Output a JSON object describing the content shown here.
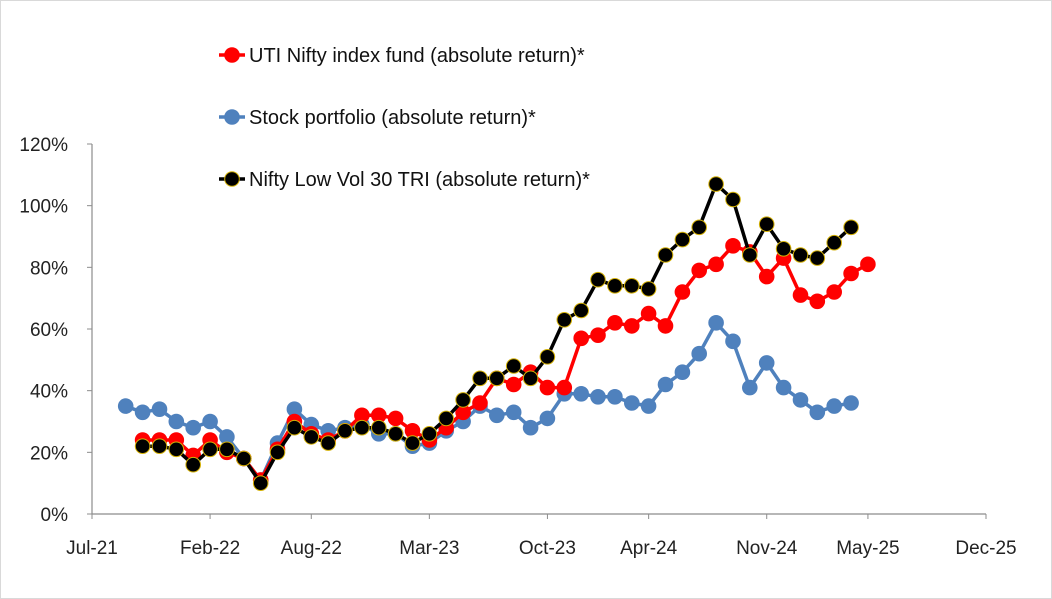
{
  "chart_data": {
    "type": "line",
    "title": "",
    "xlabel": "",
    "ylabel": "",
    "ylim": [
      0,
      120
    ],
    "yticks": [
      0,
      20,
      40,
      60,
      80,
      100,
      120
    ],
    "ytick_labels": [
      "0%",
      "20%",
      "40%",
      "60%",
      "80%",
      "100%",
      "120%"
    ],
    "xlim": [
      "2021-07-01",
      "2025-12-01"
    ],
    "xticks": [
      "2021-07-01",
      "2022-02-01",
      "2022-08-01",
      "2023-03-01",
      "2023-10-01",
      "2024-04-01",
      "2024-11-01",
      "2025-05-01",
      "2025-12-01"
    ],
    "xtick_labels": [
      "Jul-21",
      "Feb-22",
      "Aug-22",
      "Mar-23",
      "Oct-23",
      "Apr-24",
      "Nov-24",
      "May-25",
      "Dec-25"
    ],
    "grid": false,
    "legend_position": "top-center",
    "series": [
      {
        "name": "Stock portfolio (absolute return)*",
        "color": "#4f81bd",
        "marker_edge": "#4f81bd",
        "points": [
          [
            "2021-09-01",
            35
          ],
          [
            "2021-10-01",
            33
          ],
          [
            "2021-11-01",
            34
          ],
          [
            "2021-12-01",
            30
          ],
          [
            "2022-01-01",
            28
          ],
          [
            "2022-02-01",
            30
          ],
          [
            "2022-03-01",
            25
          ],
          [
            "2022-04-01",
            18
          ],
          [
            "2022-05-01",
            11
          ],
          [
            "2022-06-01",
            23
          ],
          [
            "2022-07-01",
            34
          ],
          [
            "2022-08-01",
            29
          ],
          [
            "2022-09-01",
            27
          ],
          [
            "2022-10-01",
            28
          ],
          [
            "2022-11-01",
            29
          ],
          [
            "2022-12-01",
            26
          ],
          [
            "2023-01-01",
            26
          ],
          [
            "2023-02-01",
            22
          ],
          [
            "2023-03-01",
            23
          ],
          [
            "2023-04-01",
            27
          ],
          [
            "2023-05-01",
            30
          ],
          [
            "2023-06-01",
            35
          ],
          [
            "2023-07-01",
            32
          ],
          [
            "2023-08-01",
            33
          ],
          [
            "2023-09-01",
            28
          ],
          [
            "2023-10-01",
            31
          ],
          [
            "2023-11-01",
            39
          ],
          [
            "2023-12-01",
            39
          ],
          [
            "2024-01-01",
            38
          ],
          [
            "2024-02-01",
            38
          ],
          [
            "2024-03-01",
            36
          ],
          [
            "2024-04-01",
            35
          ],
          [
            "2024-05-01",
            42
          ],
          [
            "2024-06-01",
            46
          ],
          [
            "2024-07-01",
            52
          ],
          [
            "2024-08-01",
            62
          ],
          [
            "2024-09-01",
            56
          ],
          [
            "2024-10-01",
            41
          ],
          [
            "2024-11-01",
            49
          ],
          [
            "2024-12-01",
            41
          ],
          [
            "2025-01-01",
            37
          ],
          [
            "2025-02-01",
            33
          ],
          [
            "2025-03-01",
            35
          ],
          [
            "2025-04-01",
            36
          ]
        ]
      },
      {
        "name": "UTI Nifty index fund (absolute return)*",
        "color": "#ff0000",
        "marker_edge": "#ff0000",
        "points": [
          [
            "2021-10-01",
            24
          ],
          [
            "2021-11-01",
            24
          ],
          [
            "2021-12-01",
            24
          ],
          [
            "2022-01-01",
            19
          ],
          [
            "2022-02-01",
            24
          ],
          [
            "2022-03-01",
            20
          ],
          [
            "2022-04-01",
            18
          ],
          [
            "2022-05-01",
            11
          ],
          [
            "2022-06-01",
            21
          ],
          [
            "2022-07-01",
            30
          ],
          [
            "2022-08-01",
            26
          ],
          [
            "2022-09-01",
            24
          ],
          [
            "2022-10-01",
            27
          ],
          [
            "2022-11-01",
            32
          ],
          [
            "2022-12-01",
            32
          ],
          [
            "2023-01-01",
            31
          ],
          [
            "2023-02-01",
            27
          ],
          [
            "2023-03-01",
            24
          ],
          [
            "2023-04-01",
            28
          ],
          [
            "2023-05-01",
            33
          ],
          [
            "2023-06-01",
            36
          ],
          [
            "2023-07-01",
            44
          ],
          [
            "2023-08-01",
            42
          ],
          [
            "2023-09-01",
            46
          ],
          [
            "2023-10-01",
            41
          ],
          [
            "2023-11-01",
            41
          ],
          [
            "2023-12-01",
            57
          ],
          [
            "2024-01-01",
            58
          ],
          [
            "2024-02-01",
            62
          ],
          [
            "2024-03-01",
            61
          ],
          [
            "2024-04-01",
            65
          ],
          [
            "2024-05-01",
            61
          ],
          [
            "2024-06-01",
            72
          ],
          [
            "2024-07-01",
            79
          ],
          [
            "2024-08-01",
            81
          ],
          [
            "2024-09-01",
            87
          ],
          [
            "2024-10-01",
            85
          ],
          [
            "2024-11-01",
            77
          ],
          [
            "2024-12-01",
            83
          ],
          [
            "2025-01-01",
            71
          ],
          [
            "2025-02-01",
            69
          ],
          [
            "2025-03-01",
            72
          ],
          [
            "2025-04-01",
            78
          ],
          [
            "2025-05-01",
            81
          ]
        ]
      },
      {
        "name": "Nifty Low Vol 30 TRI (absolute return)*",
        "color": "#000000",
        "marker_edge": "#d4b106",
        "points": [
          [
            "2021-10-01",
            22
          ],
          [
            "2021-11-01",
            22
          ],
          [
            "2021-12-01",
            21
          ],
          [
            "2022-01-01",
            16
          ],
          [
            "2022-02-01",
            21
          ],
          [
            "2022-03-01",
            21
          ],
          [
            "2022-04-01",
            18
          ],
          [
            "2022-05-01",
            10
          ],
          [
            "2022-06-01",
            20
          ],
          [
            "2022-07-01",
            28
          ],
          [
            "2022-08-01",
            25
          ],
          [
            "2022-09-01",
            23
          ],
          [
            "2022-10-01",
            27
          ],
          [
            "2022-11-01",
            28
          ],
          [
            "2022-12-01",
            28
          ],
          [
            "2023-01-01",
            26
          ],
          [
            "2023-02-01",
            23
          ],
          [
            "2023-03-01",
            26
          ],
          [
            "2023-04-01",
            31
          ],
          [
            "2023-05-01",
            37
          ],
          [
            "2023-06-01",
            44
          ],
          [
            "2023-07-01",
            44
          ],
          [
            "2023-08-01",
            48
          ],
          [
            "2023-09-01",
            44
          ],
          [
            "2023-10-01",
            51
          ],
          [
            "2023-11-01",
            63
          ],
          [
            "2023-12-01",
            66
          ],
          [
            "2024-01-01",
            76
          ],
          [
            "2024-02-01",
            74
          ],
          [
            "2024-03-01",
            74
          ],
          [
            "2024-04-01",
            73
          ],
          [
            "2024-05-01",
            84
          ],
          [
            "2024-06-01",
            89
          ],
          [
            "2024-07-01",
            93
          ],
          [
            "2024-08-01",
            107
          ],
          [
            "2024-09-01",
            102
          ],
          [
            "2024-10-01",
            84
          ],
          [
            "2024-11-01",
            94
          ],
          [
            "2024-12-01",
            86
          ],
          [
            "2025-01-01",
            84
          ],
          [
            "2025-02-01",
            83
          ],
          [
            "2025-03-01",
            88
          ],
          [
            "2025-04-01",
            93
          ]
        ]
      }
    ],
    "legend_order": [
      1,
      0,
      2
    ]
  }
}
